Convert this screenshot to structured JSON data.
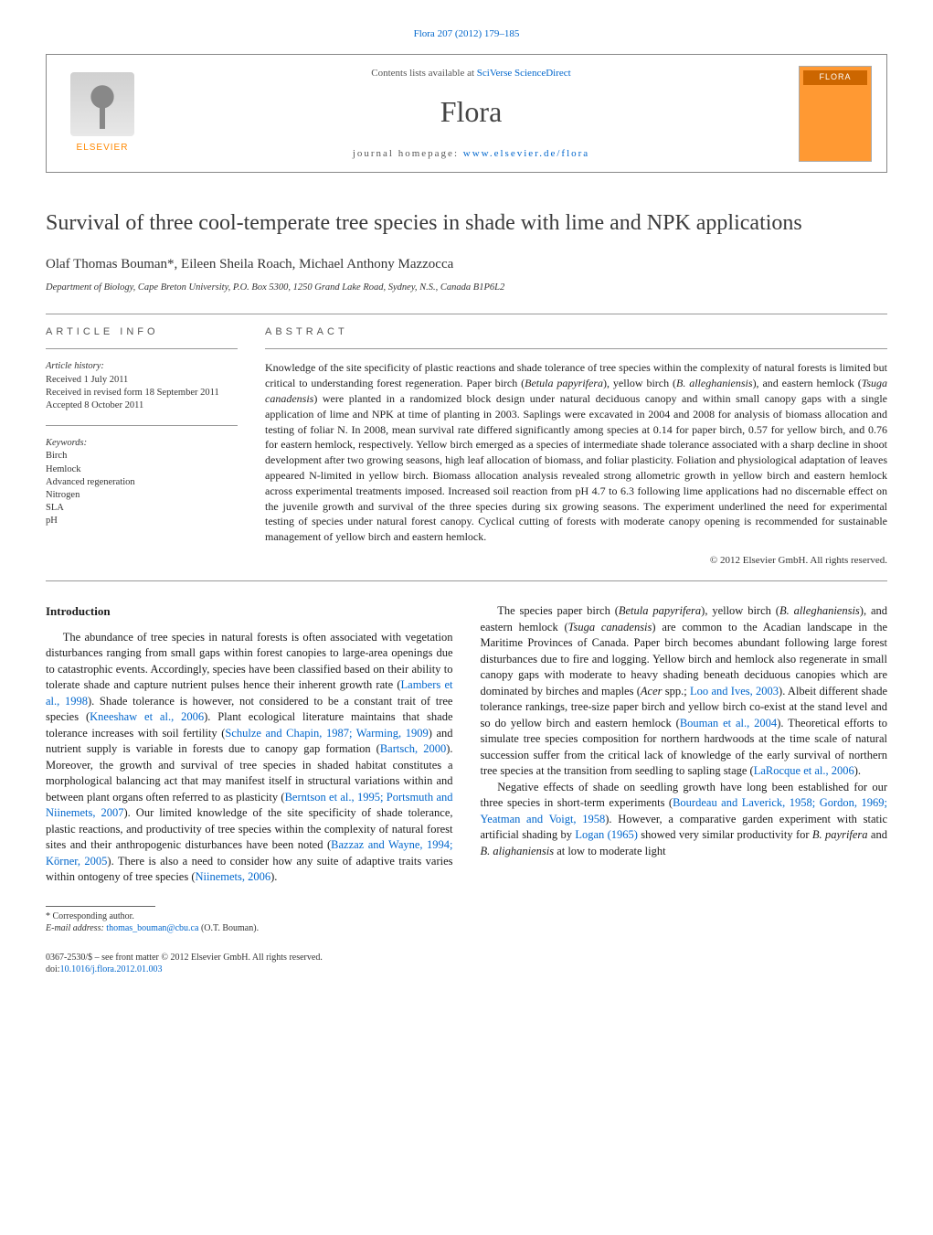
{
  "journal_ref": "Flora 207 (2012) 179–185",
  "header": {
    "contents_prefix": "Contents lists available at ",
    "contents_link": "SciVerse ScienceDirect",
    "journal_name": "Flora",
    "homepage_prefix": "journal homepage: ",
    "homepage_link": "www.elsevier.de/flora",
    "publisher_name": "ELSEVIER",
    "cover_title": "FLORA"
  },
  "title": "Survival of three cool-temperate tree species in shade with lime and NPK applications",
  "authors": "Olaf Thomas Bouman*, Eileen Sheila Roach, Michael Anthony Mazzocca",
  "affiliation": "Department of Biology, Cape Breton University, P.O. Box 5300, 1250 Grand Lake Road, Sydney, N.S., Canada B1P6L2",
  "article_info": {
    "heading": "ARTICLE INFO",
    "history_label": "Article history:",
    "received": "Received 1 July 2011",
    "revised": "Received in revised form 18 September 2011",
    "accepted": "Accepted 8 October 2011",
    "keywords_label": "Keywords:",
    "keywords": [
      "Birch",
      "Hemlock",
      "Advanced regeneration",
      "Nitrogen",
      "SLA",
      "pH"
    ]
  },
  "abstract": {
    "heading": "ABSTRACT",
    "text_parts": {
      "p1": "Knowledge of the site specificity of plastic reactions and shade tolerance of tree species within the complexity of natural forests is limited but critical to understanding forest regeneration. Paper birch (",
      "sp1": "Betula papyrifera",
      "p2": "), yellow birch (",
      "sp2": "B. alleghaniensis",
      "p3": "), and eastern hemlock (",
      "sp3": "Tsuga canadensis",
      "p4": ") were planted in a randomized block design under natural deciduous canopy and within small canopy gaps with a single application of lime and NPK at time of planting in 2003. Saplings were excavated in 2004 and 2008 for analysis of biomass allocation and testing of foliar N. In 2008, mean survival rate differed significantly among species at 0.14 for paper birch, 0.57 for yellow birch, and 0.76 for eastern hemlock, respectively. Yellow birch emerged as a species of intermediate shade tolerance associated with a sharp decline in shoot development after two growing seasons, high leaf allocation of biomass, and foliar plasticity. Foliation and physiological adaptation of leaves appeared N-limited in yellow birch. Biomass allocation analysis revealed strong allometric growth in yellow birch and eastern hemlock across experimental treatments imposed. Increased soil reaction from pH 4.7 to 6.3 following lime applications had no discernable effect on the juvenile growth and survival of the three species during six growing seasons. The experiment underlined the need for experimental testing of species under natural forest canopy. Cyclical cutting of forests with moderate canopy opening is recommended for sustainable management of yellow birch and eastern hemlock."
    },
    "copyright": "© 2012 Elsevier GmbH. All rights reserved."
  },
  "body": {
    "intro_heading": "Introduction",
    "para1_a": "The abundance of tree species in natural forests is often associated with vegetation disturbances ranging from small gaps within forest canopies to large-area openings due to catastrophic events. Accordingly, species have been classified based on their ability to tolerate shade and capture nutrient pulses hence their inherent growth rate (",
    "ref1": "Lambers et al., 1998",
    "para1_b": "). Shade tolerance is however, not considered to be a constant trait of tree species (",
    "ref2": "Kneeshaw et al., 2006",
    "para1_c": "). Plant ecological literature maintains that shade tolerance increases with soil fertility (",
    "ref3": "Schulze and Chapin, 1987; Warming, 1909",
    "para1_d": ") and nutrient supply is variable in forests due to canopy gap formation (",
    "ref4": "Bartsch, 2000",
    "para1_e": "). Moreover, the growth and survival of tree species in shaded habitat constitutes a morphological balancing act that may manifest itself in structural variations within and between plant organs often referred to as plasticity (",
    "ref5": "Berntson et al., 1995; Portsmuth and Niinemets, 2007",
    "para1_f": "). Our limited knowledge of the site specificity of shade tolerance, plastic reactions, and productivity of tree species within the complexity of natural forest sites and their anthropogenic disturbances have been noted (",
    "ref6": "Bazzaz and",
    "para1_g": " ",
    "ref6b": "Wayne, 1994; Körner, 2005",
    "para1_h": "). There is also a need to consider how any suite of adaptive traits varies within ontogeny of tree species (",
    "ref7": "Niinemets, 2006",
    "para1_i": ").",
    "para2_a": "The species paper birch (",
    "sp_pb": "Betula papyrifera",
    "para2_b": "), yellow birch (",
    "sp_yb": "B. alleghaniensis",
    "para2_c": "), and eastern hemlock (",
    "sp_eh": "Tsuga canadensis",
    "para2_d": ") are common to the Acadian landscape in the Maritime Provinces of Canada. Paper birch becomes abundant following large forest disturbances due to fire and logging. Yellow birch and hemlock also regenerate in small canopy gaps with moderate to heavy shading beneath deciduous canopies which are dominated by birches and maples (",
    "sp_acer": "Acer",
    "para2_e": " spp.; ",
    "ref8": "Loo and Ives, 2003",
    "para2_f": "). Albeit different shade tolerance rankings, tree-size paper birch and yellow birch co-exist at the stand level and so do yellow birch and eastern hemlock (",
    "ref9": "Bouman et al., 2004",
    "para2_g": "). Theoretical efforts to simulate tree species composition for northern hardwoods at the time scale of natural succession suffer from the critical lack of knowledge of the early survival of northern tree species at the transition from seedling to sapling stage (",
    "ref10": "LaRocque et al., 2006",
    "para2_h": ").",
    "para3_a": "Negative effects of shade on seedling growth have long been established for our three species in short-term experiments (",
    "ref11": "Bourdeau and Laverick, 1958; Gordon, 1969; Yeatman and Voigt, 1958",
    "para3_b": "). However, a comparative garden experiment with static artificial shading by ",
    "ref12": "Logan (1965)",
    "para3_c": " showed very similar productivity for ",
    "sp_bp2": "B. payrifera",
    "para3_d": " and ",
    "sp_ba2": "B. alighaniensis",
    "para3_e": " at low to moderate light"
  },
  "footnote": {
    "corr": "* Corresponding author.",
    "email_label": "E-mail address: ",
    "email": "thomas_bouman@cbu.ca",
    "email_who": " (O.T. Bouman)."
  },
  "bottom": {
    "line1": "0367-2530/$ – see front matter © 2012 Elsevier GmbH. All rights reserved.",
    "doi_label": "doi:",
    "doi": "10.1016/j.flora.2012.01.003"
  },
  "colors": {
    "link": "#0066cc",
    "text": "#1a1a1a",
    "accent_orange": "#ff8800",
    "cover_bg": "#ff9933"
  }
}
